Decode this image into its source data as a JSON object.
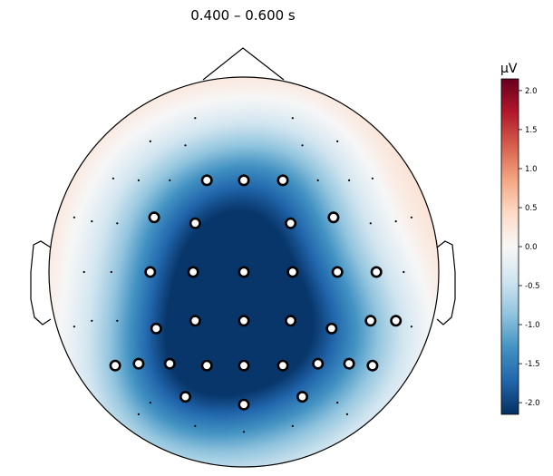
{
  "chart_data": {
    "type": "heatmap",
    "subtype": "eeg-topomap",
    "title": "0.400 – 0.600 s",
    "colorbar": {
      "label": "µV",
      "range": [
        -2.15,
        2.15
      ],
      "ticks": [
        2.0,
        1.5,
        1.0,
        0.5,
        0.0,
        -0.5,
        -1.0,
        -1.5,
        -2.0
      ],
      "tick_labels": [
        "2.0",
        "1.5",
        "1.0",
        "0.5",
        "0.0",
        "-0.5",
        "-1.0",
        "-1.5",
        "-2.0"
      ],
      "colormap": "RdBu_r"
    },
    "field": {
      "baseline": 0.5,
      "peak_min": -2.1,
      "sources": [
        {
          "x": 0.0,
          "y": -0.3,
          "amp": -2.9,
          "spread": 0.47
        },
        {
          "x": -0.25,
          "y": 0.3,
          "amp": -1.0,
          "spread": 0.35
        },
        {
          "x": 0.2,
          "y": 0.45,
          "amp": -0.8,
          "spread": 0.3
        },
        {
          "x": -0.42,
          "y": -0.6,
          "amp": -0.6,
          "spread": 0.3
        },
        {
          "x": 0.55,
          "y": -0.35,
          "amp": -0.4,
          "spread": 0.3
        }
      ]
    },
    "sensors": [
      {
        "x": -0.25,
        "y": 0.79,
        "marked": false
      },
      {
        "x": 0.25,
        "y": 0.79,
        "marked": false
      },
      {
        "x": -0.48,
        "y": 0.67,
        "marked": false
      },
      {
        "x": -0.3,
        "y": 0.65,
        "marked": false
      },
      {
        "x": 0.3,
        "y": 0.65,
        "marked": false
      },
      {
        "x": 0.48,
        "y": 0.67,
        "marked": false
      },
      {
        "x": -0.67,
        "y": 0.48,
        "marked": false
      },
      {
        "x": -0.54,
        "y": 0.47,
        "marked": false
      },
      {
        "x": -0.38,
        "y": 0.47,
        "marked": false
      },
      {
        "x": -0.19,
        "y": 0.47,
        "marked": true
      },
      {
        "x": 0.0,
        "y": 0.47,
        "marked": true
      },
      {
        "x": 0.2,
        "y": 0.47,
        "marked": true
      },
      {
        "x": 0.38,
        "y": 0.47,
        "marked": false
      },
      {
        "x": 0.54,
        "y": 0.47,
        "marked": false
      },
      {
        "x": 0.66,
        "y": 0.48,
        "marked": false
      },
      {
        "x": -0.87,
        "y": 0.28,
        "marked": false
      },
      {
        "x": -0.78,
        "y": 0.26,
        "marked": false
      },
      {
        "x": -0.65,
        "y": 0.25,
        "marked": false
      },
      {
        "x": -0.46,
        "y": 0.28,
        "marked": true
      },
      {
        "x": -0.25,
        "y": 0.25,
        "marked": true
      },
      {
        "x": 0.24,
        "y": 0.25,
        "marked": true
      },
      {
        "x": 0.46,
        "y": 0.28,
        "marked": true
      },
      {
        "x": 0.65,
        "y": 0.25,
        "marked": false
      },
      {
        "x": 0.78,
        "y": 0.26,
        "marked": false
      },
      {
        "x": 0.86,
        "y": 0.28,
        "marked": false
      },
      {
        "x": -0.82,
        "y": 0.0,
        "marked": false
      },
      {
        "x": -0.68,
        "y": 0.0,
        "marked": false
      },
      {
        "x": -0.48,
        "y": 0.0,
        "marked": true
      },
      {
        "x": -0.26,
        "y": 0.0,
        "marked": true
      },
      {
        "x": 0.0,
        "y": 0.0,
        "marked": true
      },
      {
        "x": 0.25,
        "y": 0.0,
        "marked": true
      },
      {
        "x": 0.48,
        "y": 0.0,
        "marked": true
      },
      {
        "x": 0.68,
        "y": 0.0,
        "marked": true
      },
      {
        "x": 0.82,
        "y": 0.0,
        "marked": false
      },
      {
        "x": -0.87,
        "y": -0.28,
        "marked": false
      },
      {
        "x": -0.78,
        "y": -0.25,
        "marked": false
      },
      {
        "x": -0.65,
        "y": -0.25,
        "marked": false
      },
      {
        "x": -0.45,
        "y": -0.29,
        "marked": true
      },
      {
        "x": -0.25,
        "y": -0.25,
        "marked": true
      },
      {
        "x": 0.0,
        "y": -0.25,
        "marked": true
      },
      {
        "x": 0.24,
        "y": -0.25,
        "marked": true
      },
      {
        "x": 0.45,
        "y": -0.29,
        "marked": true
      },
      {
        "x": 0.65,
        "y": -0.25,
        "marked": true
      },
      {
        "x": 0.78,
        "y": -0.25,
        "marked": true
      },
      {
        "x": 0.86,
        "y": -0.28,
        "marked": false
      },
      {
        "x": -0.66,
        "y": -0.48,
        "marked": true
      },
      {
        "x": -0.54,
        "y": -0.47,
        "marked": true
      },
      {
        "x": -0.38,
        "y": -0.47,
        "marked": true
      },
      {
        "x": -0.19,
        "y": -0.48,
        "marked": true
      },
      {
        "x": 0.0,
        "y": -0.48,
        "marked": true
      },
      {
        "x": 0.2,
        "y": -0.48,
        "marked": true
      },
      {
        "x": 0.38,
        "y": -0.47,
        "marked": true
      },
      {
        "x": 0.54,
        "y": -0.47,
        "marked": true
      },
      {
        "x": 0.66,
        "y": -0.48,
        "marked": true
      },
      {
        "x": -0.48,
        "y": -0.67,
        "marked": false
      },
      {
        "x": -0.3,
        "y": -0.64,
        "marked": true
      },
      {
        "x": 0.3,
        "y": -0.64,
        "marked": true
      },
      {
        "x": 0.48,
        "y": -0.67,
        "marked": false
      },
      {
        "x": -0.54,
        "y": -0.73,
        "marked": false
      },
      {
        "x": 0.0,
        "y": -0.68,
        "marked": true
      },
      {
        "x": 0.53,
        "y": -0.73,
        "marked": false
      },
      {
        "x": -0.25,
        "y": -0.79,
        "marked": false
      },
      {
        "x": 0.25,
        "y": -0.79,
        "marked": false
      },
      {
        "x": 0.0,
        "y": -0.82,
        "marked": false
      }
    ]
  }
}
